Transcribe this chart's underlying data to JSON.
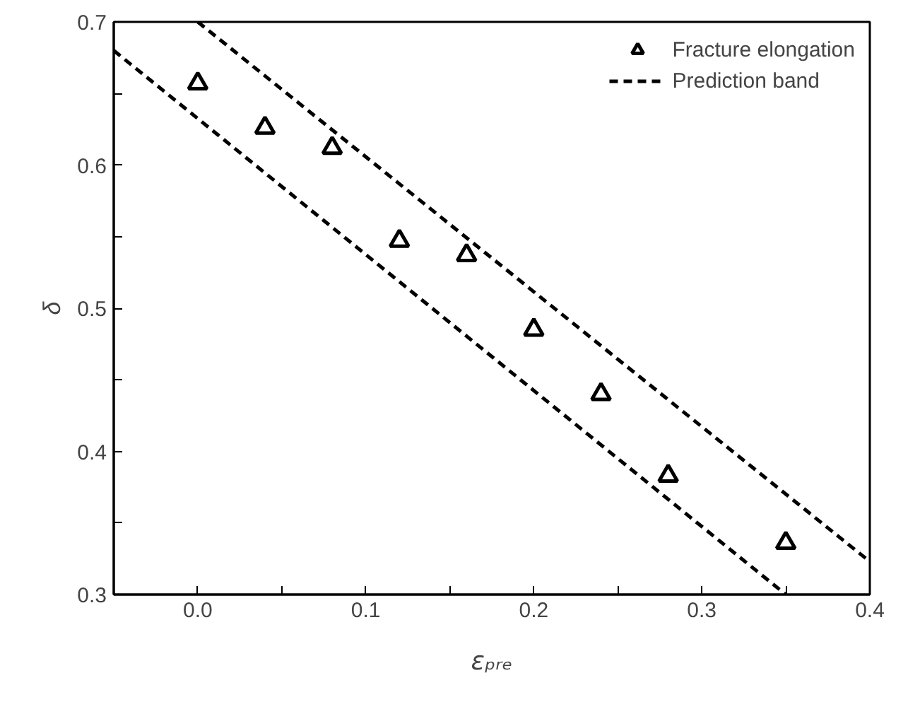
{
  "chart_data": {
    "type": "scatter",
    "xlabel": "εₚᵣₑ",
    "ylabel": "δ",
    "xlim": [
      -0.05,
      0.4
    ],
    "ylim": [
      0.3,
      0.7
    ],
    "xticks": [
      {
        "value": 0.0,
        "label": "0.0"
      },
      {
        "value": 0.05,
        "label": null
      },
      0.1,
      {
        "value": 0.15,
        "label": null
      },
      0.2,
      {
        "value": 0.25,
        "label": null
      },
      0.3,
      {
        "value": 0.35,
        "label": null
      },
      0.4
    ],
    "yticks": [
      0.3,
      {
        "value": 0.35,
        "label": null
      },
      0.4,
      {
        "value": 0.45,
        "label": null
      },
      0.5,
      {
        "value": 0.55,
        "label": null
      },
      0.6,
      {
        "value": 0.65,
        "label": null
      },
      0.7
    ],
    "grid": false,
    "legend": "top right",
    "series": [
      {
        "name": "Fracture elongation",
        "marker": "triangle",
        "color": "#000000",
        "x": [
          0.0,
          0.04,
          0.08,
          0.12,
          0.16,
          0.2,
          0.24,
          0.28,
          0.35
        ],
        "values": [
          0.657,
          0.626,
          0.612,
          0.547,
          0.537,
          0.485,
          0.44,
          0.383,
          0.336
        ]
      },
      {
        "name": "Prediction band",
        "type": "line",
        "line_style": "dashed",
        "color": "#000000",
        "x": [
          0.0,
          0.4
        ],
        "values": [
          0.7,
          0.323
        ]
      },
      {
        "type": "line",
        "line_style": "dashed",
        "color": "#000000",
        "x": [
          -0.05,
          0.35
        ],
        "values": [
          0.68,
          0.3
        ]
      }
    ]
  }
}
